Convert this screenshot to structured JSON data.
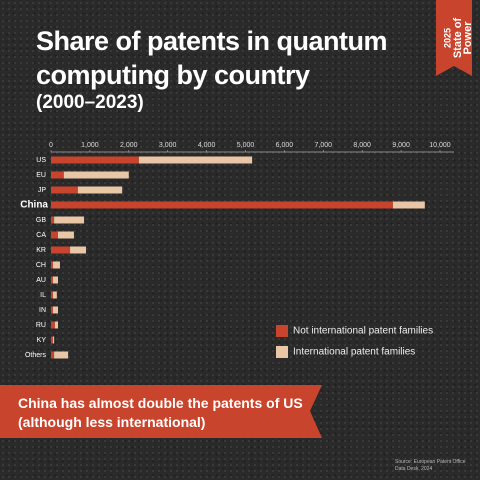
{
  "chart_data": {
    "type": "stacked_bar_horizontal",
    "title": "Share of patents in quantum computing by country",
    "subtitle": "(2000–2023)",
    "badge": [
      "2025",
      "State of",
      "Power"
    ],
    "annotation": "China has almost double the patents of US (although less international)",
    "source": "Source: European Patent Office Data Desk, 2024",
    "categories": [
      "US",
      "EU",
      "JP",
      "China",
      "GB",
      "CA",
      "KR",
      "CH",
      "AU",
      "IL",
      "IN",
      "RU",
      "KY",
      "Others"
    ],
    "highlight": "China",
    "series": [
      {
        "name": "Not international patent families",
        "color": "#c8442c",
        "values": [
          2260,
          330,
          690,
          8790,
          80,
          180,
          490,
          50,
          50,
          50,
          50,
          100,
          50,
          80
        ]
      },
      {
        "name": "International patent families",
        "color": "#e8c6a6",
        "values": [
          2910,
          1670,
          1140,
          820,
          770,
          410,
          410,
          180,
          130,
          100,
          130,
          80,
          30,
          360
        ]
      }
    ],
    "xlim": [
      0,
      10000
    ],
    "xticks": [
      0,
      {
        "value": 1000,
        "label": "1,000"
      },
      {
        "value": 2000,
        "label": "2,000"
      },
      {
        "value": 3000,
        "label": "3,000"
      },
      {
        "value": 4000,
        "label": "4,000"
      },
      {
        "value": 5000,
        "label": "5,000"
      },
      {
        "value": 6000,
        "label": "6,000"
      },
      {
        "value": 7000,
        "label": "7,000"
      },
      {
        "value": 8000,
        "label": "8,000"
      },
      {
        "value": 9000,
        "label": "9,000"
      },
      {
        "value": 10000,
        "label": "10,000"
      }
    ],
    "legend_position": "bottom-right"
  }
}
